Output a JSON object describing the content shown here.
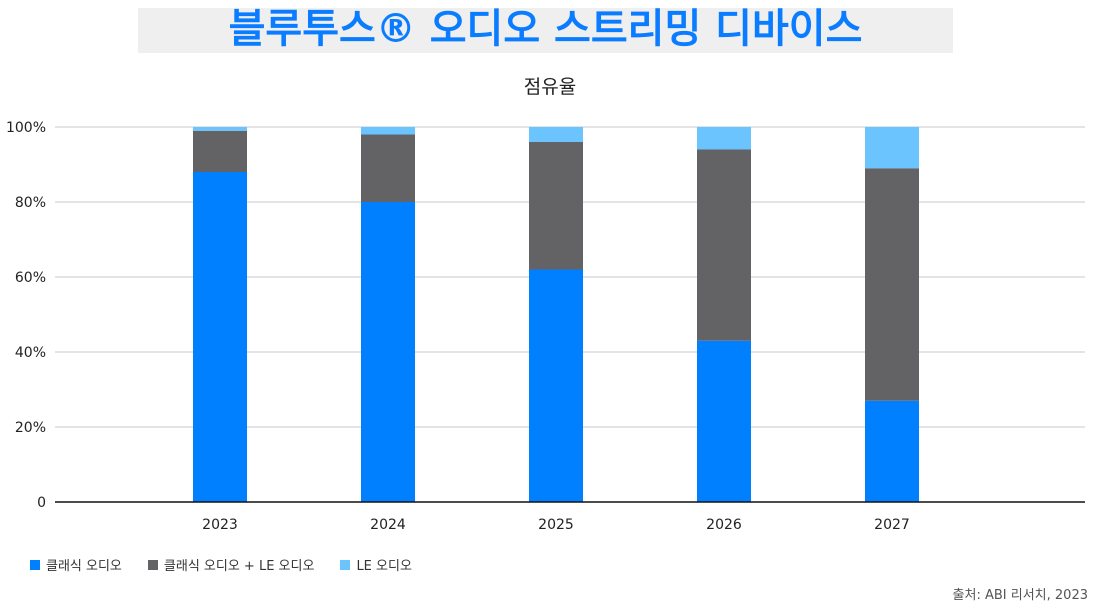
{
  "header": {
    "title": "블루투스® 오디오 스트리밍 디바이스"
  },
  "source": "출처: ABI 리서치, 2023",
  "chart_data": {
    "type": "bar",
    "stacked": true,
    "title": "점유율",
    "categories": [
      "2023",
      "2024",
      "2025",
      "2026",
      "2027"
    ],
    "series": [
      {
        "name": "클래식 오디오",
        "color": "#0080ff",
        "values": [
          88,
          80,
          62,
          43,
          27
        ]
      },
      {
        "name": "클래식 오디오 + LE 오디오",
        "color": "#636366",
        "values": [
          11,
          18,
          34,
          51,
          62
        ]
      },
      {
        "name": "LE 오디오",
        "color": "#6cc4ff",
        "values": [
          1,
          2,
          4,
          6,
          11
        ]
      }
    ],
    "yticks": [
      "0",
      "20%",
      "40%",
      "60%",
      "80%",
      "100%"
    ],
    "ylim": [
      0,
      100
    ],
    "grid": true,
    "legend": "bottom-left"
  }
}
